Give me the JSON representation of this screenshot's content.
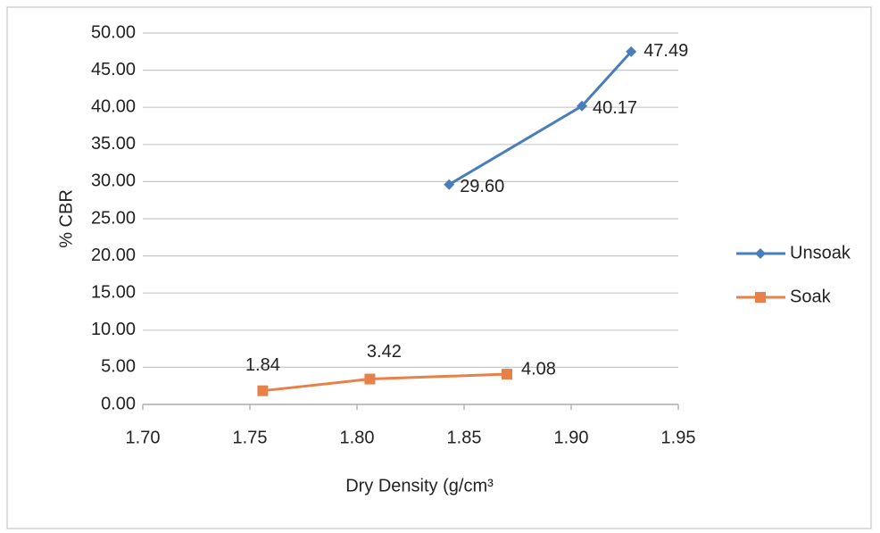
{
  "chart_data": {
    "type": "scatter",
    "x_label": "Dry Density  (g/cm³",
    "y_label": "% CBR",
    "series": [
      {
        "name": "Unsoak",
        "color": "#4a7ebb",
        "marker": "diamond",
        "x": [
          1.843,
          1.905,
          1.928
        ],
        "values": [
          29.6,
          40.17,
          47.49
        ],
        "value_labels": [
          "29.60",
          "40.17",
          "47.49"
        ]
      },
      {
        "name": "Soak",
        "color": "#e8804a",
        "marker": "square",
        "x": [
          1.756,
          1.806,
          1.87
        ],
        "values": [
          1.84,
          3.42,
          4.08
        ],
        "value_labels": [
          "1.84",
          "3.42",
          "4.08"
        ]
      }
    ],
    "xlim": [
      1.7,
      1.95
    ],
    "xticks": [
      {
        "value": 1.7,
        "label": "1.70"
      },
      1.75,
      {
        "value": 1.8,
        "label": "1.80"
      },
      1.85,
      {
        "value": 1.9,
        "label": "1.90"
      },
      1.95
    ],
    "ylim": [
      0,
      50
    ],
    "yticks": [
      {
        "value": 0,
        "label": "0.00"
      },
      {
        "value": 5,
        "label": "5.00"
      },
      {
        "value": 10,
        "label": "10.00"
      },
      {
        "value": 15,
        "label": "15.00"
      },
      {
        "value": 20,
        "label": "20.00"
      },
      {
        "value": 25,
        "label": "25.00"
      },
      {
        "value": 30,
        "label": "30.00"
      },
      {
        "value": 35,
        "label": "35.00"
      },
      {
        "value": 40,
        "label": "40.00"
      },
      {
        "value": 45,
        "label": "45.00"
      },
      {
        "value": 50,
        "label": "50.00"
      }
    ],
    "grid": true,
    "legend": "right"
  }
}
